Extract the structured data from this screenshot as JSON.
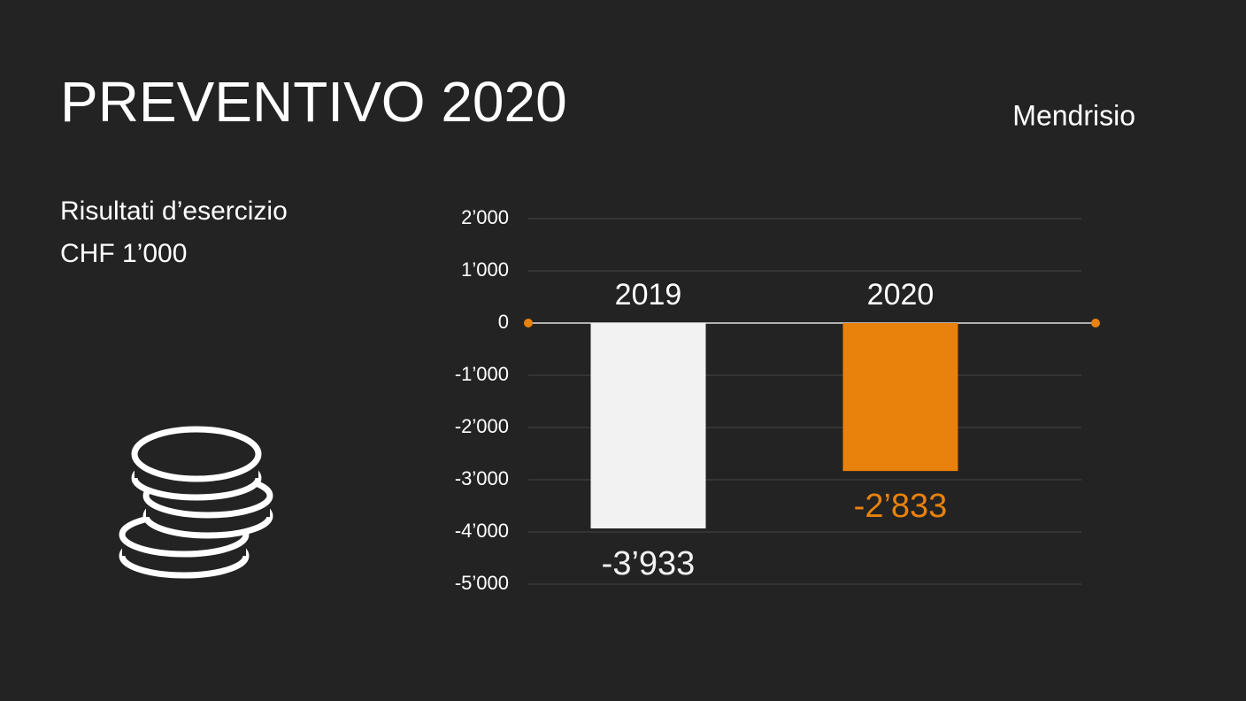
{
  "chart_data": {
    "type": "bar",
    "title": "PREVENTIVO 2020",
    "annotation": "Mendrisio",
    "subtitle": "Risultati d’esercizio",
    "y_label": "CHF 1’000",
    "categories": [
      "2019",
      "2020"
    ],
    "values": [
      -3933,
      -2833
    ],
    "value_labels": [
      "-3’933",
      "-2’833"
    ],
    "colors": [
      "#f2f2f2",
      "#e8820c"
    ],
    "ylim": [
      -5000,
      2000
    ],
    "yticks": [
      {
        "value": 2000,
        "label": "2’000"
      },
      {
        "value": 1000,
        "label": "1’000"
      },
      0,
      {
        "value": -1000,
        "label": "-1’000"
      },
      {
        "value": -2000,
        "label": "-2’000"
      },
      {
        "value": -3000,
        "label": "-3’000"
      },
      {
        "value": -4000,
        "label": "-4’000"
      },
      {
        "value": -5000,
        "label": "-5’000"
      }
    ],
    "grid": true
  }
}
